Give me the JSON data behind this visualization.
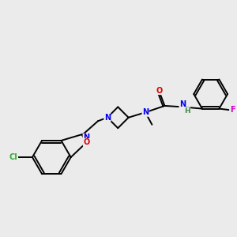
{
  "background_color": "#ebebeb",
  "bond_color": "#000000",
  "atom_colors": {
    "N": "#0000ee",
    "O": "#dd0000",
    "Cl": "#33aa33",
    "F": "#cc00cc",
    "H": "#448844",
    "C": "#000000"
  },
  "fig_w": 3.0,
  "fig_h": 3.0,
  "dpi": 100
}
